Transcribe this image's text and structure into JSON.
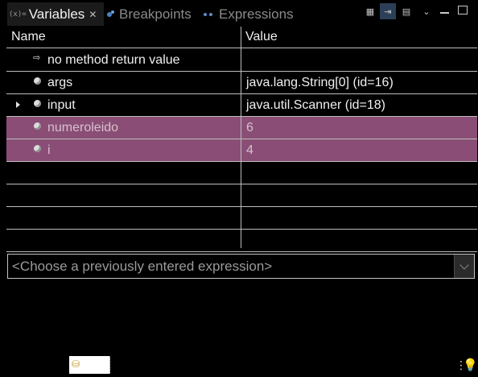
{
  "tabs": [
    {
      "label": "Variables",
      "icon": "variables-icon",
      "active": true
    },
    {
      "label": "Breakpoints",
      "icon": "breakpoints-icon",
      "active": false
    },
    {
      "label": "Expressions",
      "icon": "expressions-icon",
      "active": false
    }
  ],
  "tab_icons": {
    "variables_glyph": "(x)="
  },
  "toolbar": [
    "show-type-names-icon",
    "collapse-all-icon",
    "layout-icon",
    "view-menu-icon",
    "minimize-icon",
    "maximize-icon"
  ],
  "columns": {
    "name": "Name",
    "value": "Value"
  },
  "rows": [
    {
      "name": "no method return value",
      "value": ""
    },
    {
      "name": "args",
      "value": "java.lang.String[0]  (id=16)"
    },
    {
      "name": "input",
      "value": "java.util.Scanner  (id=18)"
    },
    {
      "name": "numeroleido",
      "value": "6"
    },
    {
      "name": "i",
      "value": "4"
    }
  ],
  "expression_input": {
    "placeholder": "<Choose a previously entered expression>"
  },
  "colors": {
    "background": "#000000",
    "selection": "#8a4e76",
    "grid": "#bdbdbd",
    "text": "#f0f0f0"
  }
}
